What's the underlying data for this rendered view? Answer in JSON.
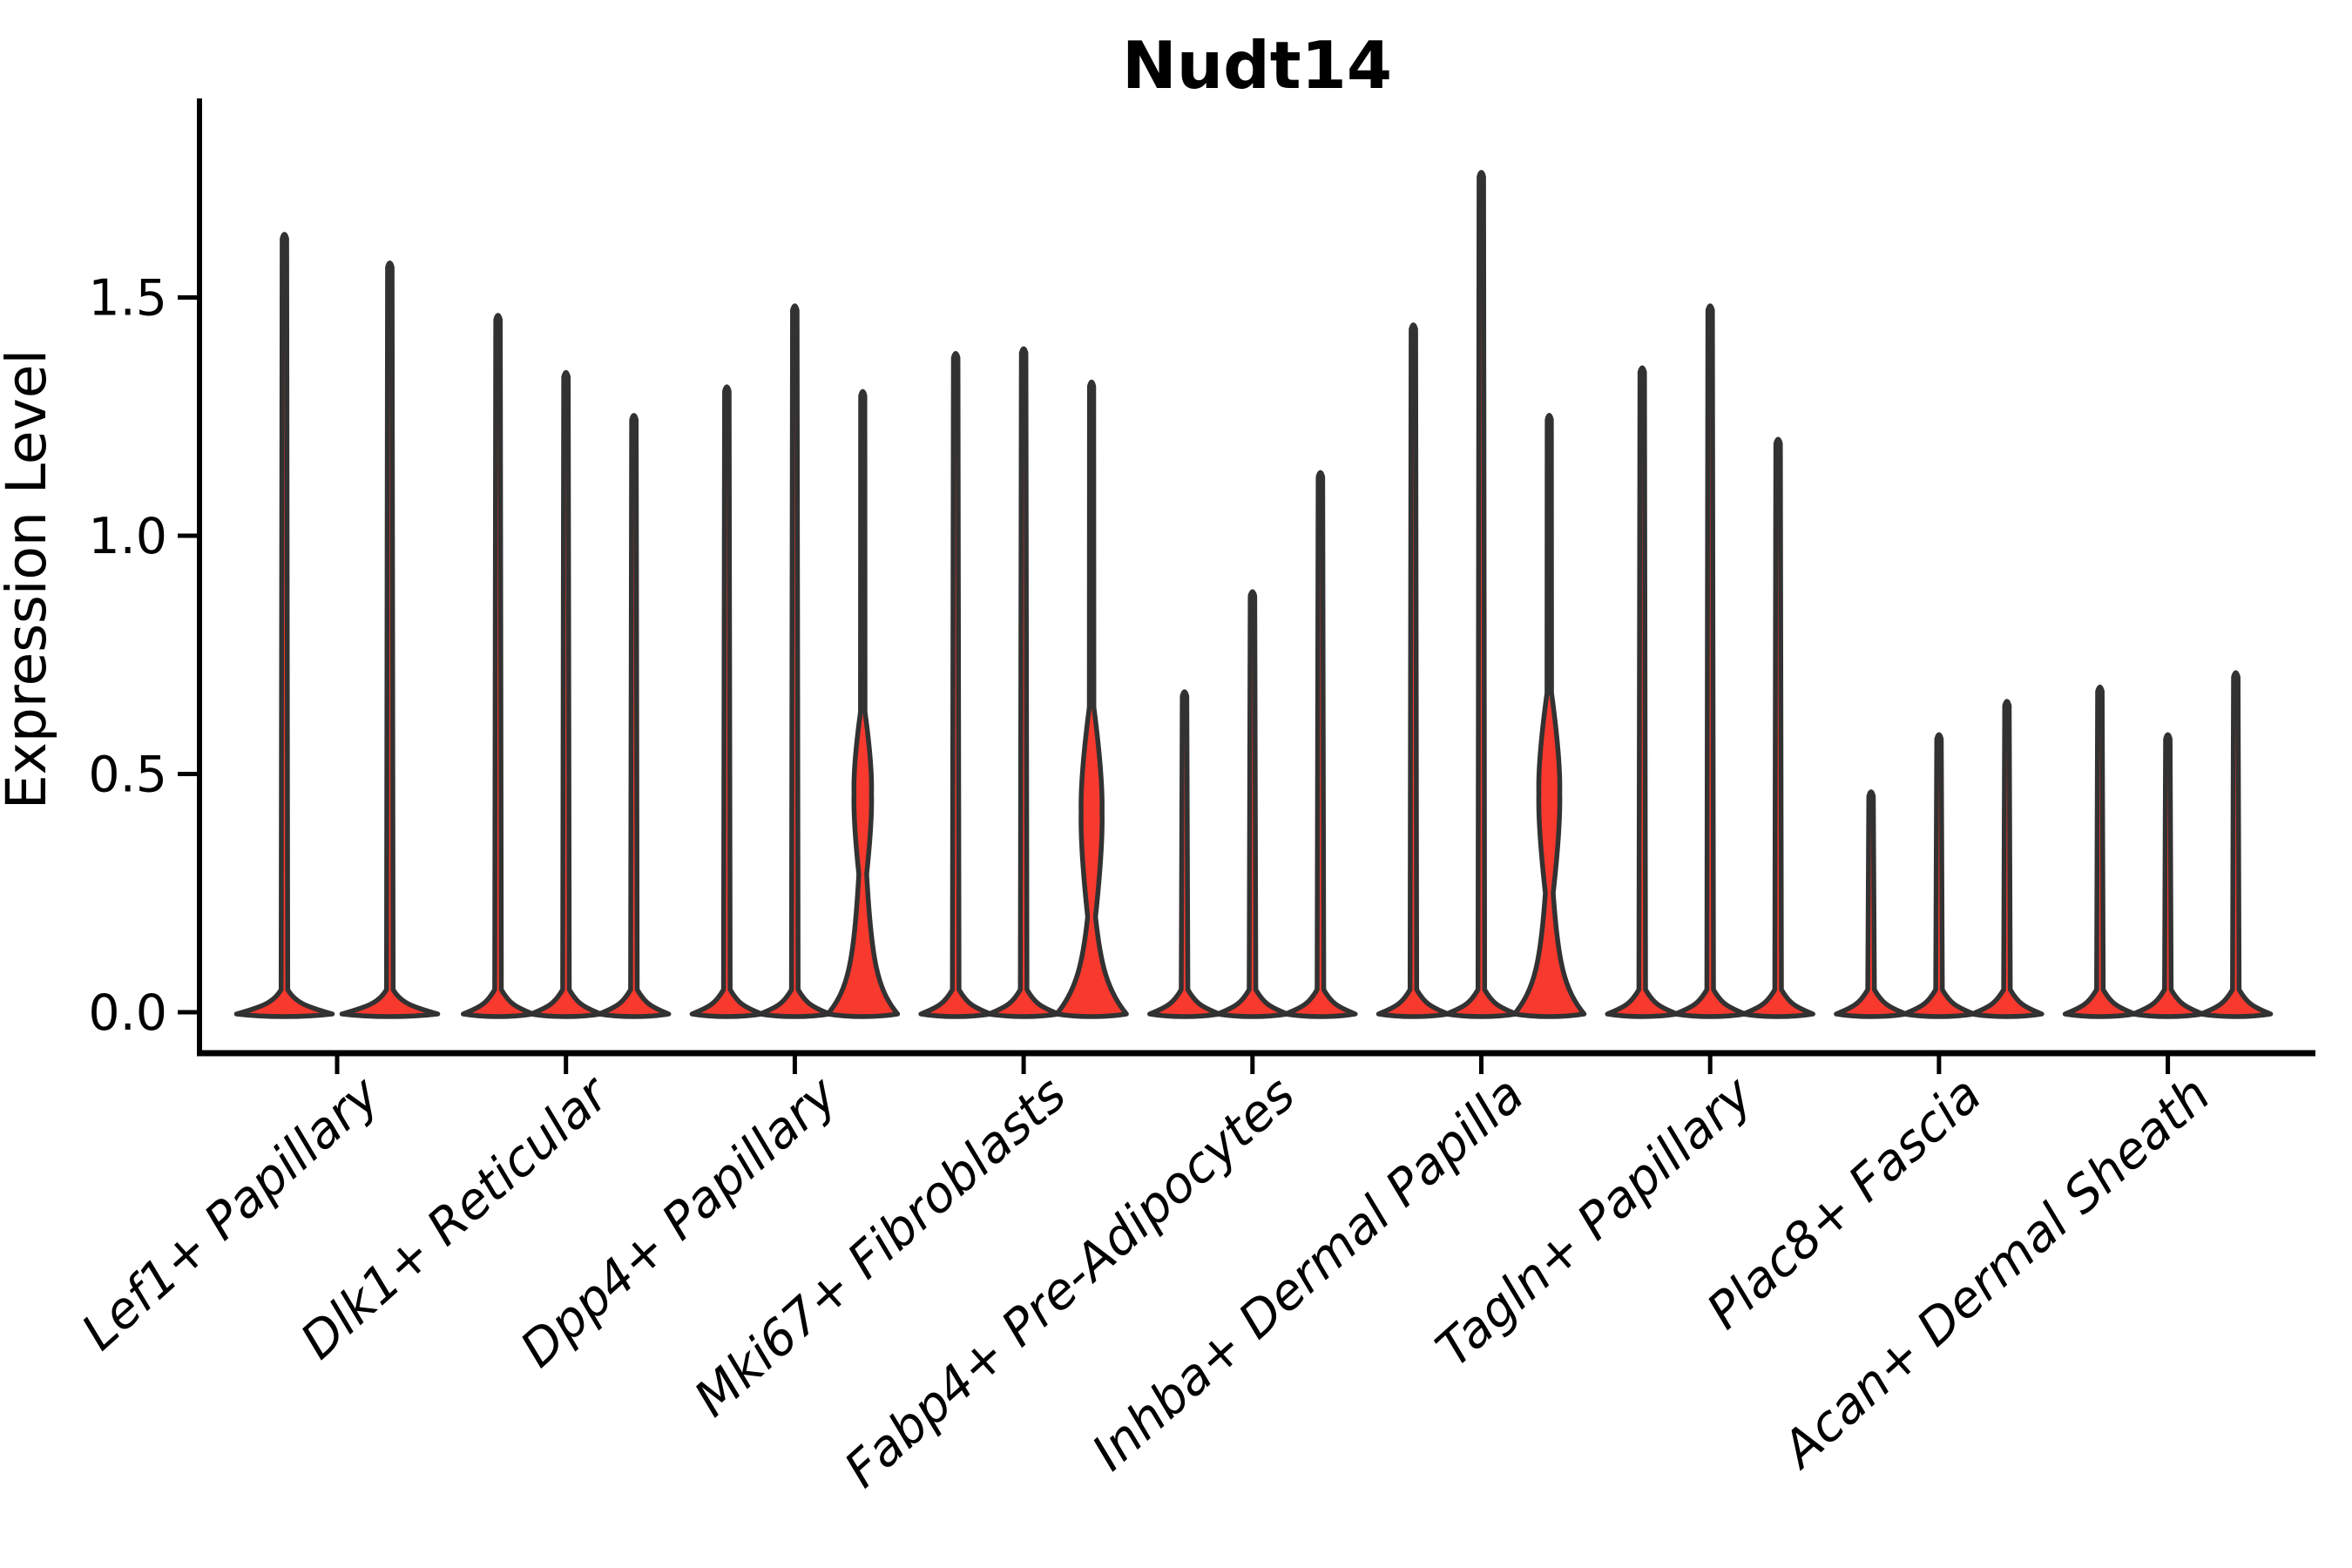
{
  "title": "Nudt14",
  "axes": {
    "ylabel": "Expression Level",
    "yticks": [
      "0.0",
      "0.5",
      "1.0",
      "1.5"
    ]
  },
  "colors": {
    "violin_fill": "#F7392E",
    "outline": "#323232",
    "text": "#000000"
  },
  "chart_data": {
    "type": "violin",
    "title": "Nudt14",
    "ylabel": "Expression Level",
    "ylim": [
      0,
      1.86
    ],
    "ytick_values": [
      0,
      0.5,
      1.0,
      1.5
    ],
    "yticks": [
      "0.0",
      "0.5",
      "1.0",
      "1.5"
    ],
    "grid": false,
    "legend": "none",
    "categories": [
      "Lef1+ Papillary",
      "Dlk1+ Reticular",
      "Dpp4+ Papillary",
      "Mki67+ Fibroblasts",
      "Fabp4+ Pre-Adipocytes",
      "Inhba+ Dermal Papilla",
      "Tagln+ Papillary",
      "Plac8+ Fascia",
      "Acan+ Dermal Sheath"
    ],
    "groups": [
      {
        "category": "Lef1+ Papillary",
        "violins": [
          {
            "max": 1.64,
            "bulk_at_zero": true,
            "bulge": null
          },
          {
            "max": 1.58,
            "bulk_at_zero": true,
            "bulge": null
          }
        ]
      },
      {
        "category": "Dlk1+ Reticular",
        "violins": [
          {
            "max": 1.47,
            "bulk_at_zero": true,
            "bulge": null
          },
          {
            "max": 1.35,
            "bulk_at_zero": true,
            "bulge": null
          },
          {
            "max": 1.26,
            "bulk_at_zero": true,
            "bulge": null
          }
        ]
      },
      {
        "category": "Dpp4+ Papillary",
        "violins": [
          {
            "max": 1.32,
            "bulk_at_zero": true,
            "bulge": null
          },
          {
            "max": 1.49,
            "bulk_at_zero": true,
            "bulge": null
          },
          {
            "max": 1.31,
            "bulk_at_zero": true,
            "bulge": {
              "center": 0.46,
              "halfspan": 0.17,
              "width": 10
            }
          }
        ]
      },
      {
        "category": "Mki67+ Fibroblasts",
        "violins": [
          {
            "max": 1.39,
            "bulk_at_zero": true,
            "bulge": null
          },
          {
            "max": 1.4,
            "bulk_at_zero": true,
            "bulge": null
          },
          {
            "max": 1.33,
            "bulk_at_zero": true,
            "bulge": {
              "center": 0.42,
              "halfspan": 0.22,
              "width": 12
            }
          }
        ]
      },
      {
        "category": "Fabp4+ Pre-Adipocytes",
        "violins": [
          {
            "max": 0.68,
            "bulk_at_zero": true,
            "bulge": null
          },
          {
            "max": 0.89,
            "bulk_at_zero": true,
            "bulge": null
          },
          {
            "max": 1.14,
            "bulk_at_zero": true,
            "bulge": null
          }
        ]
      },
      {
        "category": "Inhba+ Dermal Papilla",
        "violins": [
          {
            "max": 1.45,
            "bulk_at_zero": true,
            "bulge": null
          },
          {
            "max": 1.77,
            "bulk_at_zero": true,
            "bulge": null
          },
          {
            "max": 1.26,
            "bulk_at_zero": true,
            "bulge": {
              "center": 0.46,
              "halfspan": 0.21,
              "width": 12
            }
          }
        ]
      },
      {
        "category": "Tagln+ Papillary",
        "violins": [
          {
            "max": 1.36,
            "bulk_at_zero": true,
            "bulge": null
          },
          {
            "max": 1.49,
            "bulk_at_zero": true,
            "bulge": null
          },
          {
            "max": 1.21,
            "bulk_at_zero": true,
            "bulge": null
          }
        ]
      },
      {
        "category": "Plac8+ Fascia",
        "violins": [
          {
            "max": 0.47,
            "bulk_at_zero": true,
            "bulge": null
          },
          {
            "max": 0.59,
            "bulk_at_zero": true,
            "bulge": null
          },
          {
            "max": 0.66,
            "bulk_at_zero": true,
            "bulge": null
          }
        ]
      },
      {
        "category": "Acan+ Dermal Sheath",
        "violins": [
          {
            "max": 0.69,
            "bulk_at_zero": true,
            "bulge": null
          },
          {
            "max": 0.59,
            "bulk_at_zero": true,
            "bulge": null
          },
          {
            "max": 0.72,
            "bulk_at_zero": true,
            "bulge": null
          }
        ]
      }
    ]
  }
}
